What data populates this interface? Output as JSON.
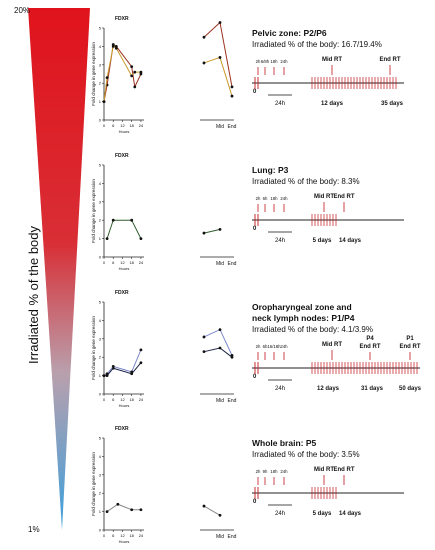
{
  "scale": {
    "top_label": "20%",
    "bottom_label": "1%",
    "axis_label": "Irradiated % of the body",
    "colors": [
      "#e0131c",
      "#d92e35",
      "#b9a0ad",
      "#3ba0dd"
    ]
  },
  "panels": [
    {
      "gene": "FDXR",
      "ylabel": "Fold change in gene expression",
      "xlabel": "Hours",
      "zone_title": "Pelvic zone: P2/P6",
      "irr_label": "Irradiated % of the body: 16.7/19.4%",
      "schedule": {
        "early": [
          "2h",
          "6/8h",
          "18h",
          "24h"
        ],
        "mid": "Mid RT",
        "end": "End RT",
        "zero": "0",
        "interval": "24h",
        "day_a": "12 days",
        "day_b": "35 days",
        "extra": []
      },
      "chart_data": {
        "type": "line",
        "ylim": [
          0,
          5
        ],
        "xlim": [
          0,
          26
        ],
        "xticks": [
          0,
          6,
          12,
          18,
          24
        ],
        "yticks": [
          0,
          1,
          2,
          3,
          4,
          5
        ],
        "x": [
          0,
          2,
          6,
          8,
          18,
          20,
          24
        ],
        "series": [
          {
            "color": "#9c3220",
            "values": [
              1,
              1.9,
              4.1,
              4.0,
              2.9,
              1.8,
              2.5
            ],
            "late": [
              4.5,
              5.3,
              1.8
            ]
          },
          {
            "color": "#c99a2b",
            "values": [
              1,
              2.3,
              4.0,
              3.9,
              2.4,
              2.6,
              2.6
            ],
            "late": [
              3.1,
              3.4,
              1.3
            ]
          }
        ],
        "late_labels": [
          "Mid",
          "End"
        ]
      }
    },
    {
      "gene": "FDXR",
      "ylabel": "Fold change in gene expression",
      "xlabel": "Hours",
      "zone_title": "Lung: P3",
      "irr_label": "Irradiated % of the body: 8.3%",
      "schedule": {
        "early": [
          "2h",
          "6h",
          "18h",
          "24h"
        ],
        "mid": "Mid RT",
        "end": "End RT",
        "zero": "0",
        "interval": "24h",
        "day_a": "5 days",
        "day_b": "14 days",
        "extra": []
      },
      "chart_data": {
        "type": "line",
        "ylim": [
          0,
          5
        ],
        "xlim": [
          0,
          26
        ],
        "xticks": [
          0,
          6,
          12,
          18,
          24
        ],
        "yticks": [
          0,
          1,
          2,
          3,
          4,
          5
        ],
        "x": [
          2,
          6,
          18,
          24
        ],
        "series": [
          {
            "color": "#2e5e2e",
            "values": [
              1.0,
              2.0,
              2.0,
              1.0
            ],
            "late": [
              1.3,
              1.5,
              null
            ]
          }
        ],
        "late_labels": [
          "Mid",
          "End"
        ]
      }
    },
    {
      "gene": "FDXR",
      "ylabel": "Fold change in gene expression",
      "xlabel": "Hours",
      "zone_title": "Oropharyngeal zone and neck lymph nodes: P1/P4",
      "irr_label": "Irradiated % of the body: 4.1/3.9%",
      "schedule": {
        "early": [
          "2h",
          "6h",
          "16/18h",
          "24h"
        ],
        "mid": "Mid RT",
        "end": "End RT",
        "zero": "0",
        "interval": "24h",
        "day_a": "12 days",
        "day_b": "31 days",
        "extra": [
          "P4",
          "P1",
          "End RT"
        ],
        "day_c": "50 days"
      },
      "chart_data": {
        "type": "line",
        "ylim": [
          0,
          5
        ],
        "xlim": [
          0,
          26
        ],
        "xticks": [
          0,
          6,
          12,
          18,
          24
        ],
        "yticks": [
          0,
          1,
          2,
          3,
          4,
          5
        ],
        "x": [
          0,
          2,
          6,
          18,
          24
        ],
        "series": [
          {
            "color": "#1a2244",
            "values": [
              1,
              1,
              1.4,
              1.1,
              1.7
            ],
            "late": [
              2.3,
              2.5,
              2.0
            ]
          },
          {
            "color": "#7a86c9",
            "values": [
              1,
              1.1,
              1.5,
              1.2,
              2.4
            ],
            "late": [
              3.1,
              3.5,
              2.1
            ]
          }
        ],
        "late_labels": [
          "Mid",
          "End"
        ]
      }
    },
    {
      "gene": "FDXR",
      "ylabel": "Fold change in gene expression",
      "xlabel": "Hours",
      "zone_title": "Whole brain: P5",
      "irr_label": "Irradiated % of the body: 3.5%",
      "schedule": {
        "early": [
          "2h",
          "9h",
          "18h",
          "24h"
        ],
        "mid": "Mid RT",
        "end": "End RT",
        "zero": "0",
        "interval": "24h",
        "day_a": "5 days",
        "day_b": "14 days",
        "extra": []
      },
      "chart_data": {
        "type": "line",
        "ylim": [
          0,
          5
        ],
        "xlim": [
          0,
          26
        ],
        "xticks": [
          0,
          6,
          12,
          18,
          24
        ],
        "yticks": [
          0,
          1,
          2,
          3,
          4,
          5
        ],
        "x": [
          2,
          9,
          18,
          24
        ],
        "series": [
          {
            "color": "#888888",
            "values": [
              1.0,
              1.4,
              1.1,
              1.1
            ],
            "late": [
              1.3,
              0.8,
              null
            ]
          }
        ],
        "late_labels": [
          "Mid",
          "End"
        ]
      }
    }
  ]
}
